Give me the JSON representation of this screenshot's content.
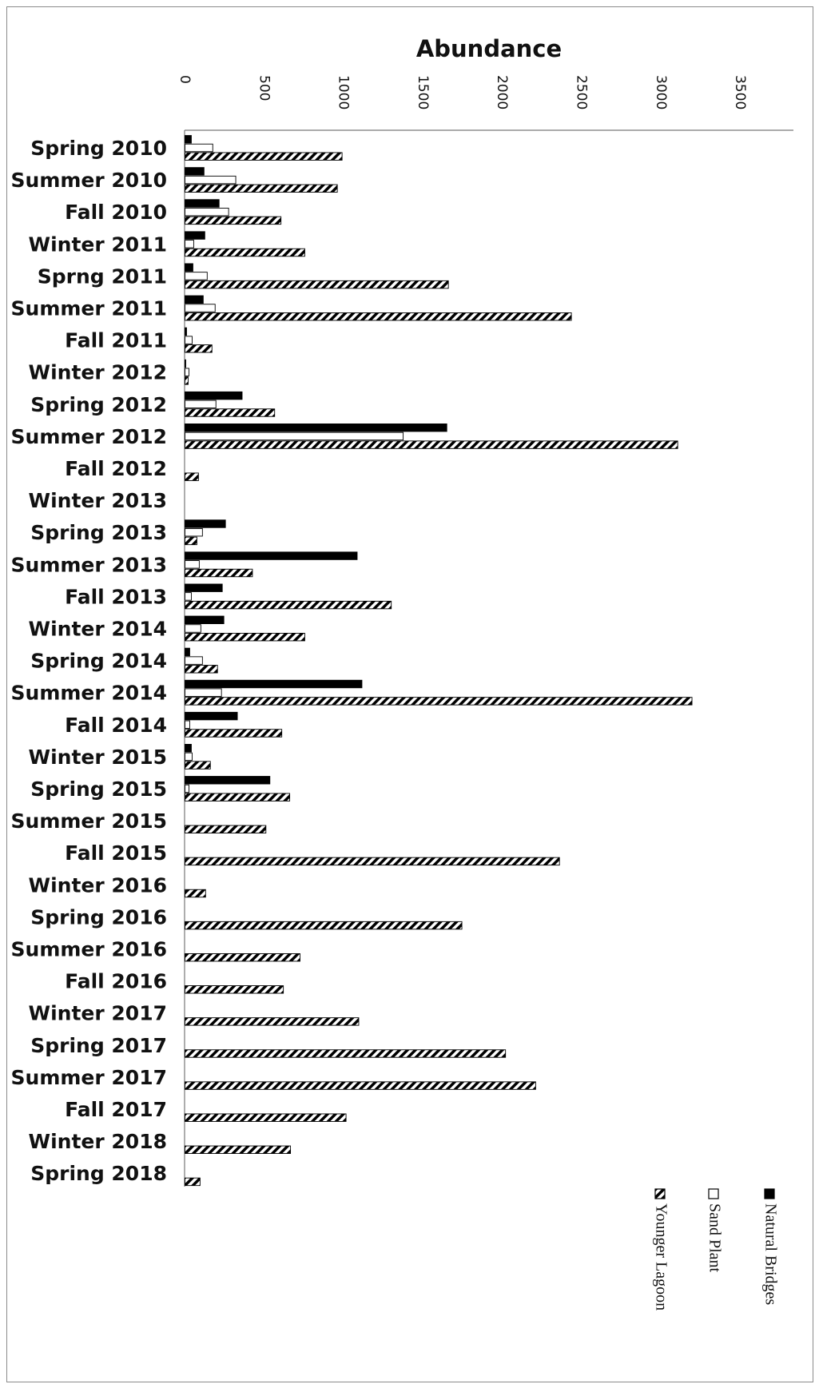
{
  "chart_data": {
    "type": "bar",
    "orientation": "horizontal",
    "title": "Abundance",
    "xlabel": "",
    "ylabel": "",
    "xlim": [
      0,
      3500
    ],
    "ticks": [
      "0",
      "500",
      "1000",
      "1500",
      "2000",
      "2500",
      "3000",
      "3500"
    ],
    "grid": false,
    "legend_position": "bottom-right, rotated",
    "categories": [
      "Spring 2010",
      "Summer 2010",
      "Fall 2010",
      "Winter 2011",
      "Sprng 2011",
      "Summer 2011",
      "Fall 2011",
      "Winter 2012",
      "Spring 2012",
      "Summer 2012",
      "Fall 2012",
      "Winter 2013",
      "Spring 2013",
      "Summer 2013",
      "Fall 2013",
      "Winter 2014",
      "Spring 2014",
      "Summer 2014",
      "Fall 2014",
      "Winter 2015",
      "Spring 2015",
      "Summer 2015",
      "Fall 2015",
      "Winter 2016",
      "Spring 2016",
      "Summer 2016",
      "Fall 2016",
      "Winter 2017",
      "Spring 2017",
      "Summer 2017",
      "Fall 2017",
      "Winter 2018",
      "Spring 2018"
    ],
    "series": [
      {
        "name": "Natural Bridges",
        "fill": "solid",
        "color": "#000000",
        "values": [
          40,
          120,
          215,
          125,
          50,
          115,
          10,
          5,
          360,
          1650,
          0,
          0,
          255,
          1085,
          235,
          245,
          30,
          1115,
          330,
          40,
          535,
          0,
          0,
          0,
          0,
          0,
          0,
          0,
          0,
          0,
          0,
          0,
          0
        ]
      },
      {
        "name": "Sand Plant",
        "fill": "white",
        "color": "#ffffff",
        "values": [
          175,
          320,
          275,
          55,
          140,
          190,
          45,
          25,
          195,
          1375,
          0,
          0,
          110,
          90,
          40,
          100,
          110,
          230,
          30,
          45,
          25,
          0,
          0,
          0,
          0,
          0,
          0,
          0,
          0,
          0,
          0,
          0,
          0
        ]
      },
      {
        "name": "Younger Lagoon",
        "fill": "hatched",
        "color": "#000000",
        "values": [
          990,
          960,
          605,
          755,
          1660,
          2435,
          170,
          20,
          565,
          3105,
          85,
          0,
          75,
          425,
          1300,
          755,
          205,
          3195,
          610,
          160,
          660,
          510,
          2360,
          130,
          1745,
          725,
          620,
          1095,
          2020,
          2210,
          1015,
          665,
          95
        ]
      }
    ]
  }
}
